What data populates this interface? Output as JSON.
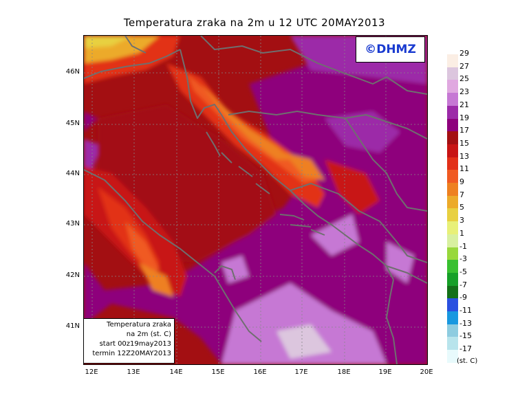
{
  "title": "Temperatura zraka na 2m u 12 UTC 20MAY2013",
  "logo": "©DHMZ",
  "info_box": {
    "line1": "Temperatura zraka",
    "line2": "na 2m (st. C)",
    "line3": "start 00z19may2013",
    "line4": "termin 12Z20MAY2013"
  },
  "lat_labels": [
    "46N",
    "45N",
    "44N",
    "43N",
    "42N",
    "41N"
  ],
  "lon_labels": [
    "12E",
    "13E",
    "14E",
    "15E",
    "16E",
    "17E",
    "18E",
    "19E",
    "20E"
  ],
  "colorbar": {
    "labels": [
      "29",
      "27",
      "25",
      "23",
      "21",
      "19",
      "17",
      "15",
      "13",
      "11",
      "9",
      "7",
      "5",
      "3",
      "1",
      "-1",
      "-3",
      "-5",
      "-7",
      "-9",
      "-11",
      "-13",
      "-15",
      "-17"
    ],
    "colors": [
      "#fbeee4",
      "#dcc6de",
      "#e0a8e0",
      "#c678d4",
      "#9c2aa8",
      "#8e007c",
      "#a30f12",
      "#c81414",
      "#e23018",
      "#f05a22",
      "#ee8020",
      "#ecaa2a",
      "#e8d040",
      "#e8f078",
      "#d8f0a0",
      "#98d83c",
      "#38c030",
      "#16a028",
      "#137018",
      "#2a50e0",
      "#1898e0",
      "#8ecce0",
      "#b8e4ec",
      "#e8fafc"
    ],
    "units": "(st. C)"
  },
  "map_meta": {
    "variable": "2m air temperature",
    "units": "°C",
    "lat_range": [
      40.3,
      46.8
    ],
    "lon_range": [
      11.7,
      20.0
    ],
    "grid": "dotted"
  }
}
